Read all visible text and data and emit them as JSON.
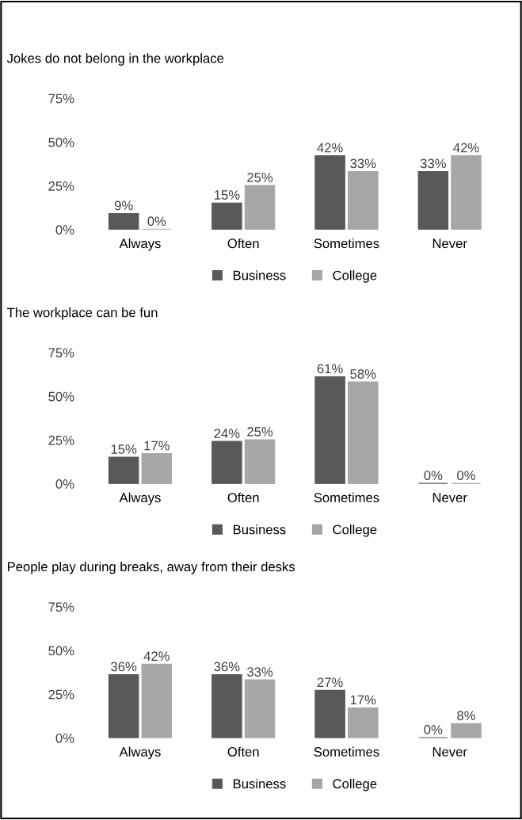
{
  "chart_data": [
    {
      "type": "bar",
      "title": "Jokes do not belong in the workplace",
      "categories": [
        "Always",
        "Often",
        "Sometimes",
        "Never"
      ],
      "series": [
        {
          "name": "Business",
          "color": "#595959",
          "values": [
            9,
            15,
            42,
            33
          ],
          "value_labels": [
            "9%",
            "15%",
            "42%",
            "33%"
          ]
        },
        {
          "name": "College",
          "color": "#a6a6a6",
          "values": [
            0,
            25,
            33,
            42
          ],
          "value_labels": [
            "0%",
            "25%",
            "33%",
            "42%"
          ]
        }
      ],
      "ylim": [
        0,
        75
      ],
      "yticks": [
        {
          "value": 0,
          "label": "0%"
        },
        {
          "value": 25,
          "label": "25%"
        },
        {
          "value": 50,
          "label": "50%"
        },
        {
          "value": 75,
          "label": "75%"
        }
      ],
      "grid": false,
      "legend": "bottom"
    },
    {
      "type": "bar",
      "title": "The workplace can be fun",
      "categories": [
        "Always",
        "Often",
        "Sometimes",
        "Never"
      ],
      "series": [
        {
          "name": "Business",
          "color": "#595959",
          "values": [
            15,
            24,
            61,
            0
          ],
          "value_labels": [
            "15%",
            "24%",
            "61%",
            "0%"
          ]
        },
        {
          "name": "College",
          "color": "#a6a6a6",
          "values": [
            17,
            25,
            58,
            0
          ],
          "value_labels": [
            "17%",
            "25%",
            "58%",
            "0%"
          ]
        }
      ],
      "ylim": [
        0,
        75
      ],
      "yticks": [
        {
          "value": 0,
          "label": "0%"
        },
        {
          "value": 25,
          "label": "25%"
        },
        {
          "value": 50,
          "label": "50%"
        },
        {
          "value": 75,
          "label": "75%"
        }
      ],
      "grid": false,
      "legend": "bottom"
    },
    {
      "type": "bar",
      "title": "People play during breaks, away from their desks",
      "categories": [
        "Always",
        "Often",
        "Sometimes",
        "Never"
      ],
      "series": [
        {
          "name": "Business",
          "color": "#595959",
          "values": [
            36,
            36,
            27,
            0
          ],
          "value_labels": [
            "36%",
            "36%",
            "27%",
            "0%"
          ]
        },
        {
          "name": "College",
          "color": "#a6a6a6",
          "values": [
            42,
            33,
            17,
            8
          ],
          "value_labels": [
            "42%",
            "33%",
            "17%",
            "8%"
          ]
        }
      ],
      "ylim": [
        0,
        75
      ],
      "yticks": [
        {
          "value": 0,
          "label": "0%"
        },
        {
          "value": 25,
          "label": "25%"
        },
        {
          "value": 50,
          "label": "50%"
        },
        {
          "value": 75,
          "label": "75%"
        }
      ],
      "grid": false,
      "legend": "bottom"
    }
  ]
}
